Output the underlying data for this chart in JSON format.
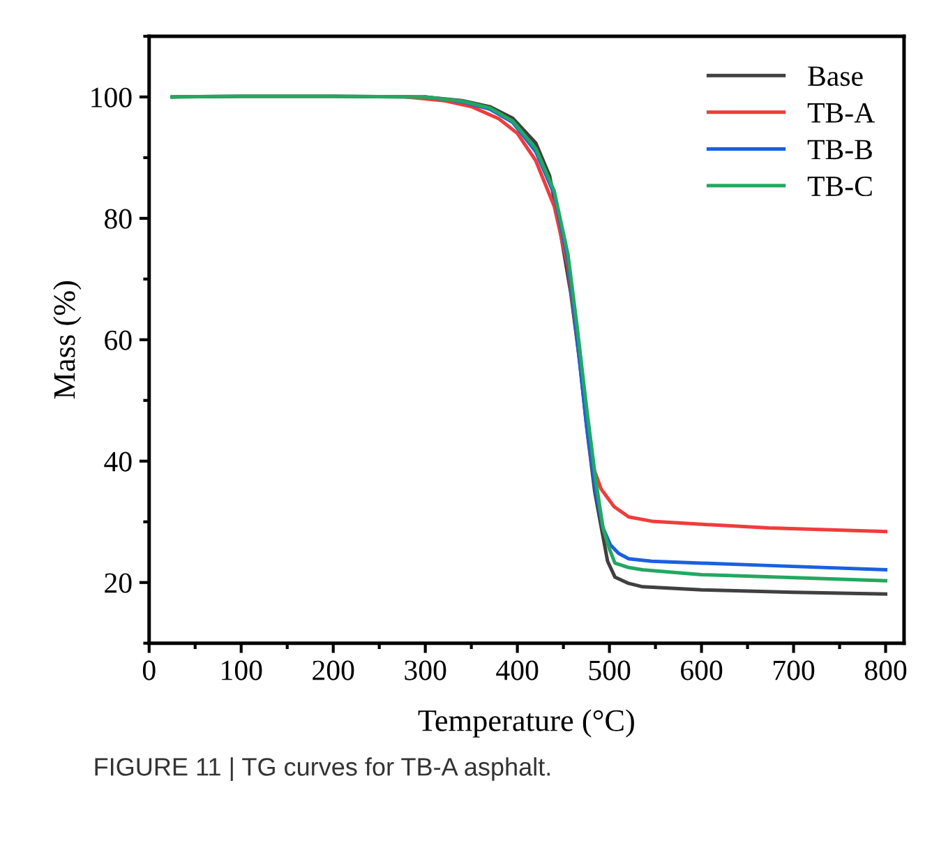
{
  "chart_data": {
    "type": "line",
    "xlabel": "Temperature (°C)",
    "ylabel": "Mass (%)",
    "annotations": [
      "FIGURE 11 | TG curves for TB-A asphalt."
    ],
    "xlim": [
      0,
      820
    ],
    "xticks": [
      0,
      100,
      200,
      300,
      400,
      500,
      600,
      700,
      800
    ],
    "ylim": [
      10,
      110
    ],
    "yticks": [
      20,
      40,
      60,
      80,
      100
    ],
    "grid": false,
    "legend": "top right",
    "line_style": "solid",
    "marker": "none",
    "series": [
      {
        "name": "Base",
        "color": "#404040",
        "x": [
          25,
          100,
          200,
          300,
          340,
          370,
          395,
          420,
          435,
          445,
          458,
          468,
          476,
          484,
          491,
          498,
          506,
          520,
          536,
          600,
          700,
          800
        ],
        "values": [
          100,
          100.1,
          100.1,
          100,
          99.4,
          98.4,
          96.5,
          92.4,
          87,
          79.3,
          67.7,
          56,
          44.7,
          35,
          29.2,
          23.5,
          20.9,
          19.9,
          19.3,
          18.8,
          18.4,
          18.1
        ]
      },
      {
        "name": "TB-A",
        "color": "#f03c3c",
        "x": [
          280,
          320,
          350,
          380,
          400,
          420,
          440,
          455,
          465,
          475,
          480,
          491,
          505,
          521,
          546,
          600,
          673,
          800
        ],
        "values": [
          100,
          99.4,
          98.4,
          96.4,
          94,
          89.5,
          82,
          72,
          60,
          48,
          40,
          35.4,
          32.5,
          30.8,
          30.1,
          29.6,
          29,
          28.4
        ]
      },
      {
        "name": "TB-B",
        "color": "#1a60e0",
        "x": [
          300,
          340,
          370,
          395,
          420,
          440,
          455,
          465,
          475,
          485,
          493,
          501,
          510,
          521,
          546,
          600,
          673,
          800
        ],
        "values": [
          100,
          99.2,
          98,
          95.8,
          91,
          84,
          73,
          60,
          46,
          35,
          29,
          26.2,
          24.8,
          23.9,
          23.5,
          23.2,
          22.8,
          22.1
        ]
      },
      {
        "name": "TB-C",
        "color": "#22a860",
        "x": [
          25,
          100,
          200,
          300,
          340,
          370,
          395,
          420,
          440,
          455,
          465,
          475,
          485,
          493,
          500,
          506,
          520,
          536,
          600,
          700,
          800
        ],
        "values": [
          100,
          100.1,
          100.1,
          100,
          99.3,
          98.2,
          96,
          91.5,
          84.5,
          74,
          62,
          49,
          37,
          29,
          25.5,
          23.2,
          22.5,
          22.1,
          21.3,
          20.8,
          20.3
        ]
      }
    ]
  }
}
